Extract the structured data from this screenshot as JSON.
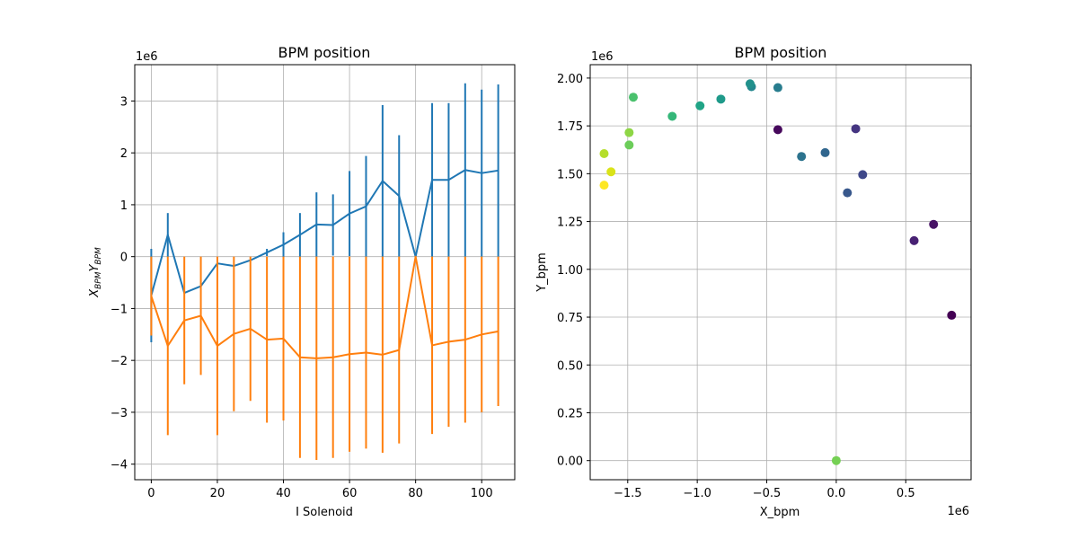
{
  "chart_data": [
    {
      "type": "line",
      "title": "BPM position",
      "xlabel": "I Solenoid",
      "ylabel": "X_BPM Y_BPM",
      "ylabel_parts": {
        "x_main": "X",
        "x_sub": "BPM",
        "y_main": "Y",
        "y_sub": "BPM"
      },
      "y_offset_label": "1e6",
      "xlim": [
        -5,
        110
      ],
      "ylim": [
        -4.3,
        3.7
      ],
      "xticks": [
        0,
        20,
        40,
        60,
        80,
        100
      ],
      "yticks": [
        -4,
        -3,
        -2,
        -1,
        0,
        1,
        2,
        3
      ],
      "grid": true,
      "x": [
        0,
        5,
        10,
        15,
        20,
        25,
        30,
        35,
        40,
        45,
        50,
        55,
        60,
        65,
        70,
        75,
        80,
        85,
        90,
        95,
        100,
        105
      ],
      "series": [
        {
          "name": "X_BPM",
          "color": "#1f77b4",
          "values": [
            -0.75,
            0.42,
            -0.7,
            -0.57,
            -0.13,
            -0.18,
            -0.07,
            0.08,
            0.23,
            0.42,
            0.62,
            0.61,
            0.83,
            0.97,
            1.46,
            1.17,
            0.0,
            1.48,
            1.48,
            1.67,
            1.61,
            1.66
          ],
          "error": [
            0.9,
            0.42,
            0.0,
            0.0,
            0.0,
            0.0,
            0.0,
            0.07,
            0.24,
            0.42,
            0.62,
            0.59,
            0.82,
            0.97,
            1.46,
            1.17,
            0.0,
            1.48,
            1.48,
            1.67,
            1.61,
            1.66
          ]
        },
        {
          "name": "Y_BPM",
          "color": "#ff7f0e",
          "values": [
            -0.76,
            -1.72,
            -1.23,
            -1.14,
            -1.72,
            -1.49,
            -1.39,
            -1.6,
            -1.58,
            -1.94,
            -1.96,
            -1.94,
            -1.88,
            -1.85,
            -1.89,
            -1.8,
            0.0,
            -1.71,
            -1.64,
            -1.6,
            -1.5,
            -1.44
          ],
          "error": [
            0.76,
            1.72,
            1.23,
            1.14,
            1.72,
            1.49,
            1.39,
            1.6,
            1.58,
            1.94,
            1.96,
            1.94,
            1.88,
            1.85,
            1.89,
            1.8,
            0.0,
            1.71,
            1.64,
            1.6,
            1.5,
            1.44
          ]
        }
      ]
    },
    {
      "type": "scatter",
      "title": "BPM position",
      "xlabel": "X_bpm",
      "ylabel": "Y_bpm",
      "x_offset_label": "1e6",
      "y_offset_label": "1e6",
      "xlim": [
        -1.77,
        0.97
      ],
      "ylim": [
        -0.1,
        2.07
      ],
      "xticks": [
        -1.5,
        -1.0,
        -0.5,
        0.0,
        0.5
      ],
      "xtick_labels": [
        "−1.5",
        "−1.0",
        "−0.5",
        "0.0",
        "0.5"
      ],
      "yticks": [
        0.0,
        0.25,
        0.5,
        0.75,
        1.0,
        1.25,
        1.5,
        1.75,
        2.0
      ],
      "ytick_labels": [
        "0.00",
        "0.25",
        "0.50",
        "0.75",
        "1.00",
        "1.25",
        "1.50",
        "1.75",
        "2.00"
      ],
      "grid": true,
      "colormap": "viridis",
      "points": [
        {
          "x": 0.83,
          "y": 0.76,
          "color": "#440154"
        },
        {
          "x": -0.42,
          "y": 1.73,
          "color": "#46085c"
        },
        {
          "x": 0.7,
          "y": 1.235,
          "color": "#471365"
        },
        {
          "x": 0.56,
          "y": 1.15,
          "color": "#482173"
        },
        {
          "x": 0.14,
          "y": 1.735,
          "color": "#453581"
        },
        {
          "x": 0.19,
          "y": 1.495,
          "color": "#3f4889"
        },
        {
          "x": 0.08,
          "y": 1.4,
          "color": "#38588c"
        },
        {
          "x": -0.08,
          "y": 1.61,
          "color": "#31668e"
        },
        {
          "x": -0.25,
          "y": 1.59,
          "color": "#2c738e"
        },
        {
          "x": -0.42,
          "y": 1.95,
          "color": "#287d8e"
        },
        {
          "x": -0.61,
          "y": 1.955,
          "color": "#24878e"
        },
        {
          "x": -0.62,
          "y": 1.97,
          "color": "#21918c"
        },
        {
          "x": -0.83,
          "y": 1.89,
          "color": "#1f9a8a"
        },
        {
          "x": -0.98,
          "y": 1.855,
          "color": "#20a486"
        },
        {
          "x": 0.0,
          "y": 0.0,
          "color": "#75d054"
        },
        {
          "x": -1.18,
          "y": 1.8,
          "color": "#35b779"
        },
        {
          "x": -1.46,
          "y": 1.9,
          "color": "#4ac16d"
        },
        {
          "x": -1.49,
          "y": 1.65,
          "color": "#6ccd5a"
        },
        {
          "x": -1.49,
          "y": 1.715,
          "color": "#8ed645"
        },
        {
          "x": -1.67,
          "y": 1.605,
          "color": "#b5de2b"
        },
        {
          "x": -1.62,
          "y": 1.51,
          "color": "#dae319"
        },
        {
          "x": -1.67,
          "y": 1.44,
          "color": "#fde725"
        }
      ]
    }
  ]
}
